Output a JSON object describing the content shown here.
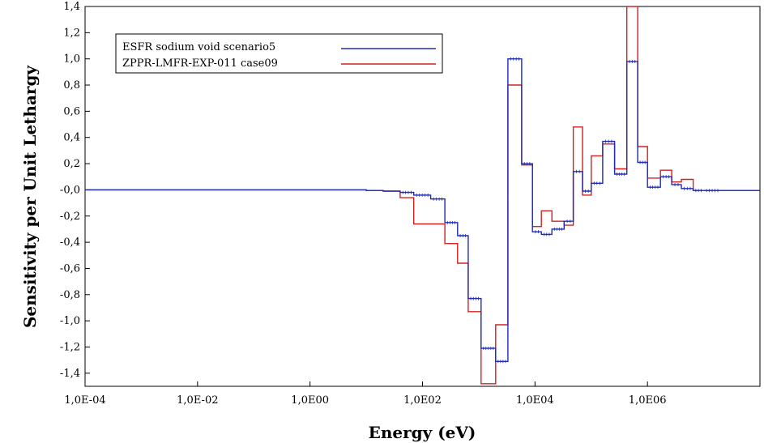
{
  "chart_data": {
    "type": "line",
    "step": true,
    "xlabel": "Energy (eV)",
    "ylabel": "Sensitivity per Unit Lethargy",
    "x_scale": "log",
    "xlim": [
      0.0001,
      100000000
    ],
    "ylim": [
      -1.5,
      1.4
    ],
    "x_ticks": [
      {
        "value": 0.0001,
        "label": "1,0E-04"
      },
      {
        "value": 0.01,
        "label": "1,0E-02"
      },
      {
        "value": 1,
        "label": "1,0E00"
      },
      {
        "value": 100,
        "label": "1,0E02"
      },
      {
        "value": 10000,
        "label": "1,0E04"
      },
      {
        "value": 1000000,
        "label": "1,0E06"
      }
    ],
    "y_ticks": [
      {
        "value": 1.4,
        "label": "1,4"
      },
      {
        "value": 1.2,
        "label": "1,2"
      },
      {
        "value": 1.0,
        "label": "1,0"
      },
      {
        "value": 0.8,
        "label": "0,8"
      },
      {
        "value": 0.6,
        "label": "0,6"
      },
      {
        "value": 0.4,
        "label": "0,4"
      },
      {
        "value": 0.2,
        "label": "0,2"
      },
      {
        "value": 0.0,
        "label": "-0,0"
      },
      {
        "value": -0.2,
        "label": "-0,2"
      },
      {
        "value": -0.4,
        "label": "-0,4"
      },
      {
        "value": -0.6,
        "label": "-0,6"
      },
      {
        "value": -0.8,
        "label": "-0,8"
      },
      {
        "value": -1.0,
        "label": "-1,0"
      },
      {
        "value": -1.2,
        "label": "-1,2"
      },
      {
        "value": -1.4,
        "label": "-1,4"
      }
    ],
    "grid": false,
    "legend_position": "top-left",
    "bin_edges": [
      0.0001,
      10,
      20,
      40,
      70,
      140,
      250,
      420,
      650,
      1100,
      2000,
      3300,
      5800,
      9000,
      13000,
      20000,
      33000,
      48000,
      70000,
      100000,
      160000,
      260000,
      430000,
      670000,
      1000000,
      1700000,
      2700000,
      4000000,
      6500000,
      10000000,
      20000000,
      100000000
    ],
    "series": [
      {
        "name": "ESFR sodium void scenario5",
        "color": "#1f2bb5",
        "values": [
          0.0,
          -0.005,
          -0.01,
          -0.02,
          -0.04,
          -0.07,
          -0.25,
          -0.35,
          -0.83,
          -1.21,
          -1.31,
          1.0,
          0.2,
          -0.32,
          -0.34,
          -0.3,
          -0.24,
          0.14,
          -0.01,
          0.05,
          0.37,
          0.12,
          0.98,
          0.21,
          0.02,
          0.1,
          0.04,
          0.01,
          -0.005,
          -0.005,
          -0.005
        ]
      },
      {
        "name": "ZPPR-LMFR-EXP-011 case09",
        "color": "#d42020",
        "values": [
          0.0,
          -0.005,
          -0.01,
          -0.06,
          -0.26,
          -0.26,
          -0.41,
          -0.56,
          -0.93,
          -1.48,
          -1.03,
          0.8,
          0.19,
          -0.28,
          -0.16,
          -0.24,
          -0.27,
          0.48,
          -0.04,
          0.26,
          0.35,
          0.16,
          1.4,
          0.33,
          0.09,
          0.15,
          0.06,
          0.08,
          -0.005,
          -0.005,
          -0.005
        ]
      }
    ]
  }
}
